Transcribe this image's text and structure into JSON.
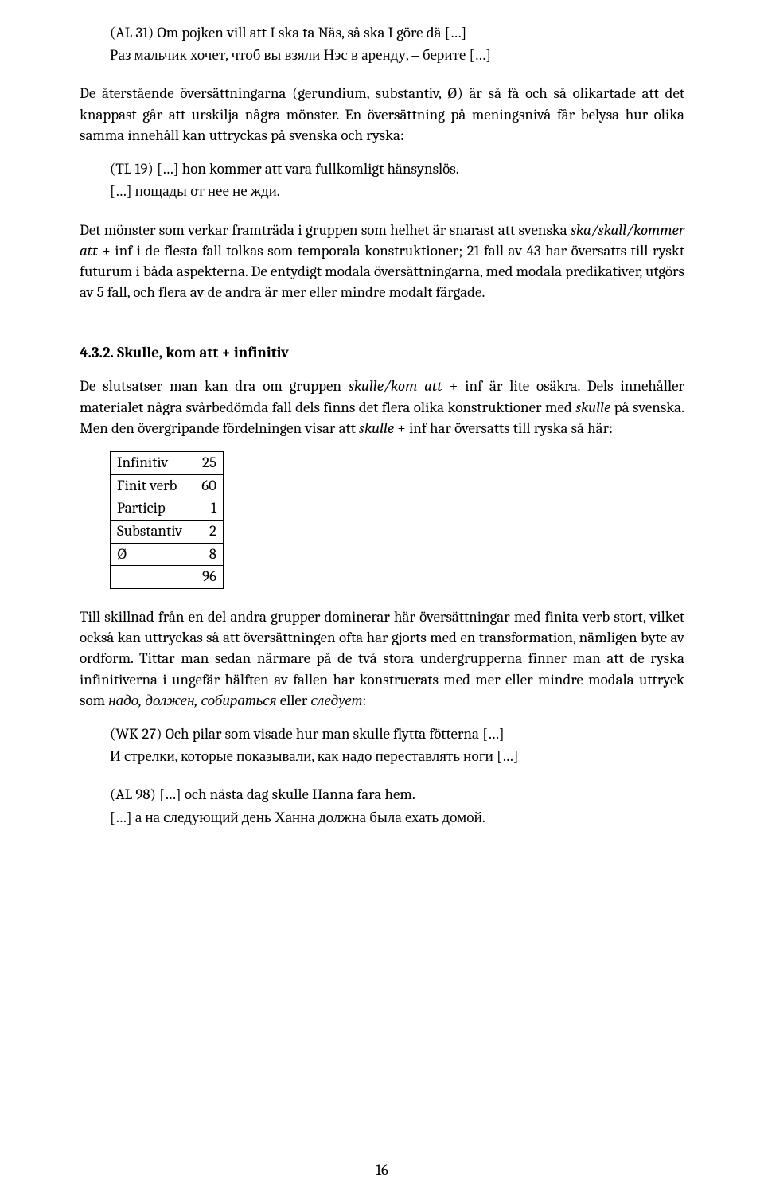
{
  "block1": {
    "line1": "(AL 31) Om pojken vill att I ska ta Näs, så ska I göre dä […]",
    "line2": "Раз мальчик хочет, чтоб вы взяли Нэс в аренду, ‒ берите […]"
  },
  "para1": "De återstående översättningarna (gerundium, substantiv, Ø) är så få och så olikartade att det knappast går att urskilja några mönster. En översättning på meningsnivå får belysa hur olika samma innehåll kan uttryckas på svenska och ryska:",
  "block2": {
    "line1": "(TL 19) […] hon kommer att vara fullkomligt hänsynslös.",
    "line2": "[…] пощады от нее не жди."
  },
  "para2_pre": "Det mönster som verkar framträda i gruppen som helhet är snarast att svenska ",
  "para2_italic": "ska/skall/kommer att",
  "para2_post": " + inf i de flesta fall tolkas som temporala konstruktioner; 21 fall av 43 har översatts till ryskt futurum i båda aspekterna. De entydigt modala översättningarna, med modala predikativer, utgörs av 5 fall, och flera av de andra är mer eller mindre modalt färgade.",
  "heading": "4.3.2. Skulle, kom att + infinitiv",
  "para3_a": "De slutsatser man kan dra om gruppen ",
  "para3_i1": "skulle/kom att",
  "para3_b": " + inf är lite osäkra. Dels innehåller materialet några svårbedömda fall dels finns det flera olika konstruktioner med ",
  "para3_i2": "skulle",
  "para3_c": " på svenska. Men den övergripande fördelningen visar att ",
  "para3_i3": "skulle",
  "para3_d": " + inf har översatts till ryska så här:",
  "table": {
    "rows": [
      [
        "Infinitiv",
        "25"
      ],
      [
        "Finit verb",
        "60"
      ],
      [
        "Particip",
        "1"
      ],
      [
        "Substantiv",
        "2"
      ],
      [
        "Ø",
        "8"
      ],
      [
        "",
        "96"
      ]
    ]
  },
  "para4_a": "Till skillnad från en del andra grupper dominerar här översättningar med finita verb stort, vilket också kan uttryckas så att översättningen ofta har gjorts med en trans­formation, nämligen byte av ordform. Tittar man sedan närmare på de två stora undergrupperna finner man att de ryska infinitiverna i ungefär hälften av fallen har konstruerats med mer eller mindre modala uttryck som ",
  "para4_i1": "надо, должен, собираться",
  "para4_b": " eller ",
  "para4_i2": "следует",
  "para4_c": ":",
  "block3": {
    "line1": "(WK 27) Och pilar som visade hur man skulle flytta fötterna […]",
    "line2": "И стрелки, которые показывали, как надо переставлять ноги […]"
  },
  "block4": {
    "line1": "(AL 98) […] och nästa dag skulle Hanna fara hem.",
    "line2": "[…] а на следующий день Ханна должна была ехать домой."
  },
  "page_number": "16"
}
